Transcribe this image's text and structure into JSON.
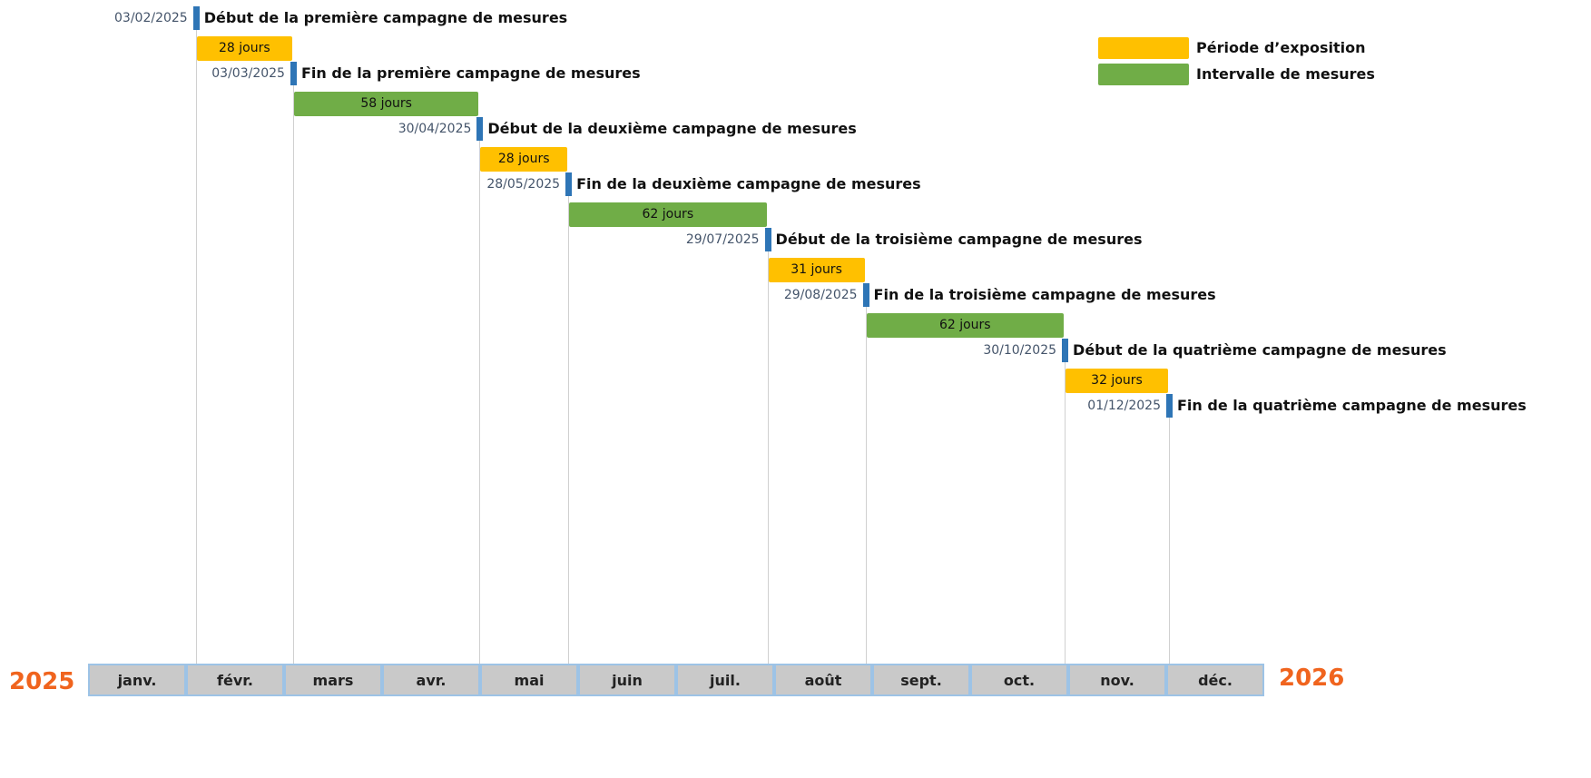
{
  "legend": [
    {
      "label": "Période d’exposition",
      "color": "#ffc000"
    },
    {
      "label": "Intervalle de mesures",
      "color": "#70ad47"
    }
  ],
  "milestones": [
    {
      "date": "03/02/2025",
      "label": "Début de la première campagne de mesures"
    },
    {
      "date": "03/03/2025",
      "label": "Fin de la première campagne de mesures"
    },
    {
      "date": "30/04/2025",
      "label": "Début de la deuxième campagne de mesures"
    },
    {
      "date": "28/05/2025",
      "label": "Fin de la deuxième campagne de mesures"
    },
    {
      "date": "29/07/2025",
      "label": "Début de la troisième campagne de mesures"
    },
    {
      "date": "29/08/2025",
      "label": "Fin de la troisième campagne de mesures"
    },
    {
      "date": "30/10/2025",
      "label": "Début de la quatrième campagne de mesures"
    },
    {
      "date": "01/12/2025",
      "label": "Fin de la quatrième campagne de mesures"
    }
  ],
  "periods": [
    {
      "label": "28 jours",
      "color": "#ffc000"
    },
    {
      "label": "58 jours",
      "color": "#70ad47"
    },
    {
      "label": "28 jours",
      "color": "#ffc000"
    },
    {
      "label": "62 jours",
      "color": "#70ad47"
    },
    {
      "label": "31 jours",
      "color": "#ffc000"
    },
    {
      "label": "62 jours",
      "color": "#70ad47"
    },
    {
      "label": "32 jours",
      "color": "#ffc000"
    }
  ],
  "months": [
    "janv.",
    "févr.",
    "mars",
    "avr.",
    "mai",
    "juin",
    "juil.",
    "août",
    "sept.",
    "oct.",
    "nov.",
    "déc."
  ],
  "years": [
    "2025",
    "2026"
  ]
}
